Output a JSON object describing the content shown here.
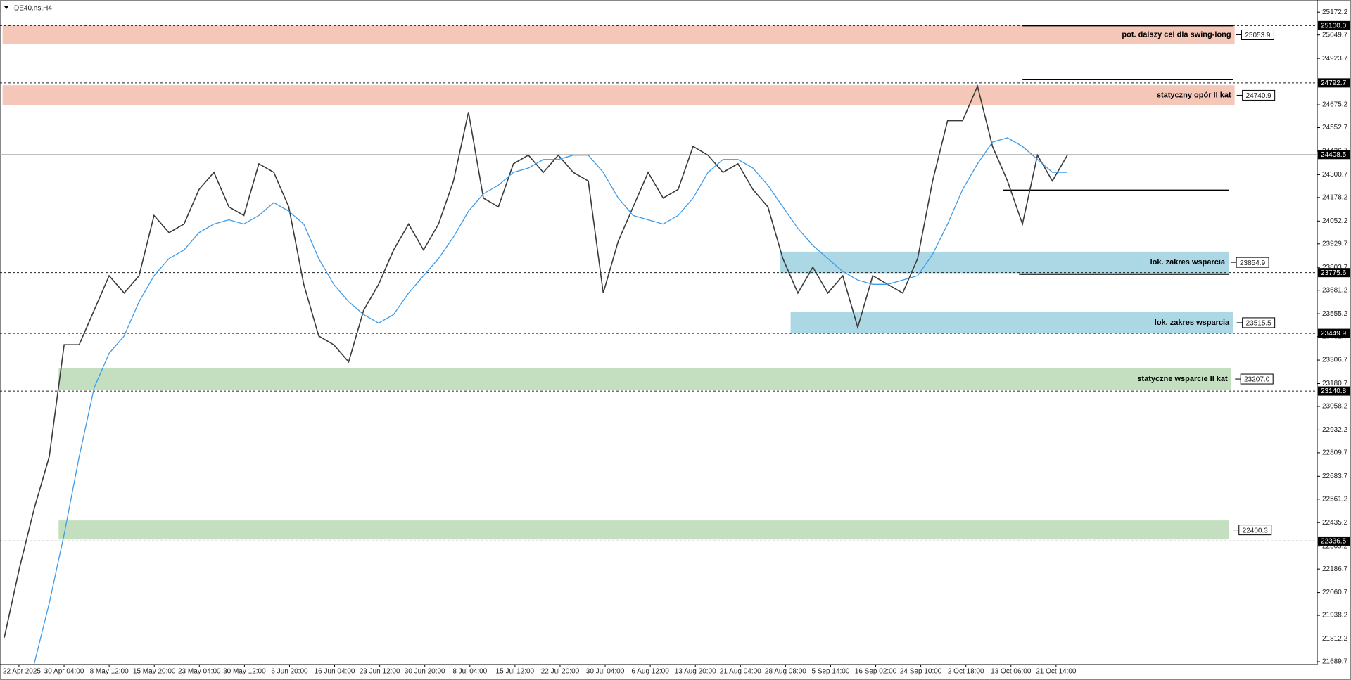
{
  "chart_data": {
    "type": "line",
    "title": "DE40.ns,H4",
    "xticks": [
      "22 Apr 2025",
      "30 Apr 04:00",
      "8 May 12:00",
      "15 May 20:00",
      "23 May 04:00",
      "30 May 12:00",
      "6 Jun 20:00",
      "16 Jun 04:00",
      "23 Jun 12:00",
      "30 Jun 20:00",
      "8 Jul 04:00",
      "15 Jul 12:00",
      "22 Jul 20:00",
      "30 Jul 04:00",
      "6 Aug 12:00",
      "13 Aug 20:00",
      "21 Aug 04:00",
      "28 Aug 08:00",
      "5 Sep 14:00",
      "16 Sep 02:00",
      "24 Sep 10:00",
      "2 Oct 18:00",
      "13 Oct 06:00",
      "21 Oct 14:00"
    ],
    "series": [
      {
        "color": "#3a3a3a",
        "values": [
          21819,
          22188,
          22512,
          22789,
          23389,
          23389,
          23574,
          23759,
          23666,
          23759,
          24082,
          23990,
          24036,
          24221,
          24313,
          24128,
          24082,
          24359,
          24313,
          24128,
          23713,
          23436,
          23389,
          23297,
          23574,
          23713,
          23897,
          24036,
          23897,
          24036,
          24267,
          24636,
          24175,
          24128,
          24359,
          24405,
          24313,
          24405,
          24313,
          24267,
          23666,
          23944,
          24128,
          24313,
          24175,
          24221,
          24452,
          24405,
          24313,
          24359,
          24221,
          24128,
          23851,
          23666,
          23805,
          23666,
          23759,
          23482,
          23759,
          23713,
          23666,
          23851,
          24267,
          24590,
          24590,
          24775,
          24452,
          24267,
          24036,
          24405,
          24267,
          24405
        ]
      },
      {
        "color": "#3d9be9",
        "values": [
          null,
          null,
          21680,
          22004,
          22373,
          22789,
          23158,
          23343,
          23436,
          23620,
          23759,
          23851,
          23897,
          23990,
          24036,
          24059,
          24036,
          24082,
          24151,
          24105,
          24036,
          23851,
          23713,
          23620,
          23551,
          23505,
          23551,
          23666,
          23759,
          23851,
          23967,
          24105,
          24198,
          24244,
          24313,
          24336,
          24382,
          24382,
          24405,
          24405,
          24313,
          24175,
          24082,
          24059,
          24036,
          24082,
          24175,
          24313,
          24382,
          24382,
          24336,
          24244,
          24128,
          24013,
          23921,
          23851,
          23782,
          23736,
          23713,
          23713,
          23736,
          23759,
          23874,
          24036,
          24221,
          24359,
          24475,
          24498,
          24452,
          24382,
          24313,
          24313
        ]
      }
    ],
    "ylim": [
      21689.7,
      25172.2
    ],
    "yticks": [
      25172.2,
      25049.7,
      24923.7,
      24797.7,
      24675.2,
      24552.7,
      24426.7,
      24300.7,
      24178.2,
      24052.2,
      23929.7,
      23803.7,
      23681.2,
      23555.2,
      23432.7,
      23306.7,
      23180.7,
      23058.2,
      22932.2,
      22809.7,
      22683.7,
      22561.2,
      22435.2,
      22309.2,
      22186.7,
      22060.7,
      21938.2,
      21812.2,
      21689.7
    ],
    "levels": [
      {
        "value": 25100,
        "label": "25100.0",
        "style": "dashed"
      },
      {
        "value": 24792.7,
        "label": "24792.7",
        "style": "dashed"
      },
      {
        "value": 24408.5,
        "label": "24408.5",
        "style": "solid"
      },
      {
        "value": 23775.6,
        "label": "23775.6",
        "style": "dashed"
      },
      {
        "value": 23449.9,
        "label": "23449.9",
        "style": "dashed"
      },
      {
        "value": 23140.8,
        "label": "23140.8",
        "style": "dashed"
      },
      {
        "value": 22336.5,
        "label": "22336.5",
        "style": "dashed"
      }
    ],
    "zones": [
      {
        "range": [
          25001,
          25100
        ],
        "color": "#f4c7b8",
        "label": "pot. dalszy cel dla swing-long",
        "price": "25053.9"
      },
      {
        "range": [
          24673,
          24780
        ],
        "color": "#f4c7b8",
        "label": "statyczny opór II kat",
        "price": "24740.9"
      },
      {
        "range": [
          23773,
          23888
        ],
        "color": "#acd8e6",
        "label": "lok. zakres wsparcia",
        "price": "23854.9"
      },
      {
        "range": [
          23449,
          23565
        ],
        "color": "#acd8e6",
        "label": "lok. zakres wsparcia",
        "price": "23515.5"
      },
      {
        "range": [
          23145,
          23265
        ],
        "color": "#c3dfc0",
        "label": "statyczne wsparcie II kat",
        "price": "23207.0"
      },
      {
        "range": [
          22345,
          22447
        ],
        "color": "#c3dfc0",
        "price": "22400.3"
      }
    ],
    "lines": [
      25100,
      24811,
      24217,
      23768
    ]
  }
}
